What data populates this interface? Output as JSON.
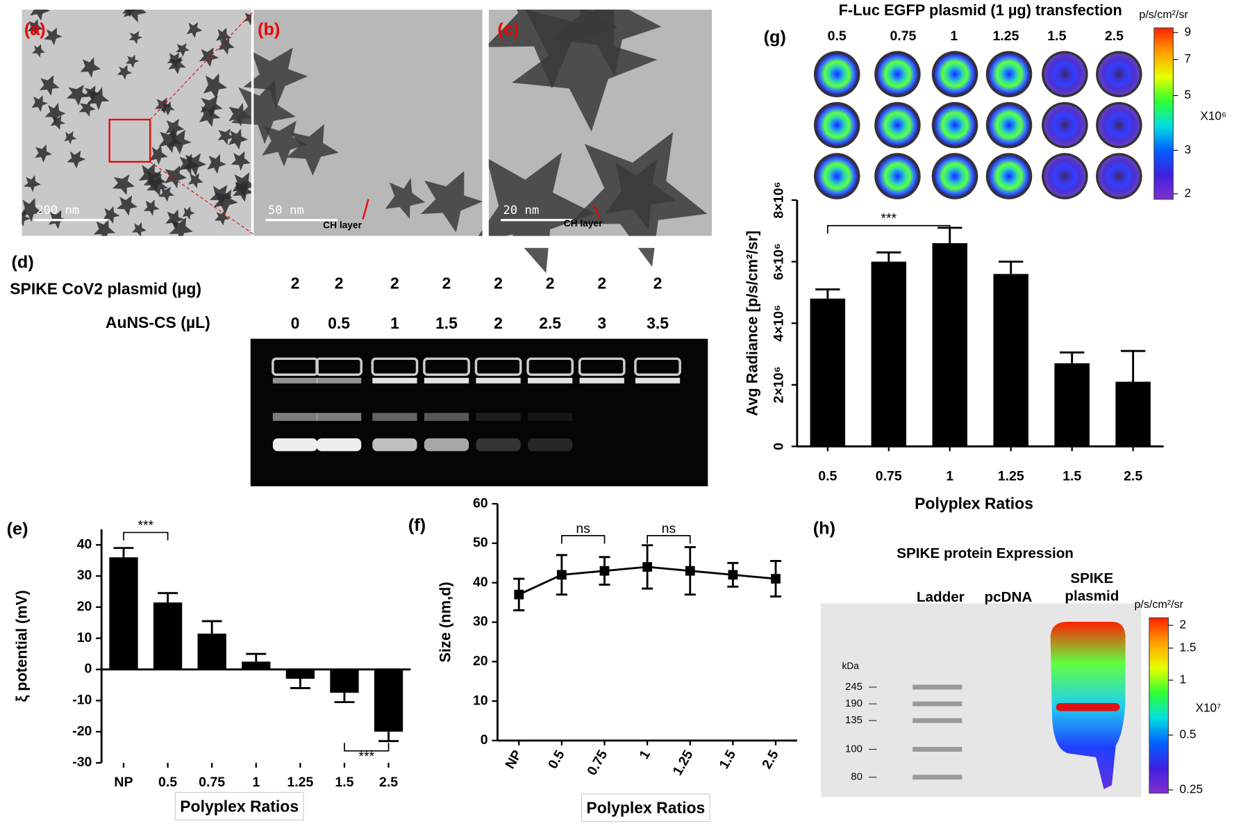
{
  "panel_labels": [
    "(a)",
    "(b)",
    "(c)",
    "(d)",
    "(e)",
    "(f)",
    "(g)",
    "(h)"
  ],
  "tem": {
    "scale_bars": [
      "200 nm",
      "50 nm",
      "20 nm"
    ],
    "annotation": "CH layer"
  },
  "gel": {
    "rows": [
      {
        "label": "SPIKE CoV2 plasmid (µg)",
        "values": [
          2,
          2,
          2,
          2,
          2,
          2,
          2,
          2
        ]
      },
      {
        "label": "AuNS-CS  (µL)",
        "values": [
          0,
          0.5,
          1,
          1.5,
          2,
          2.5,
          3,
          3.5
        ]
      }
    ]
  },
  "imaging": {
    "title": "F-Luc EGFP plasmid (1 µg) transfection",
    "columns": [
      "0.5",
      "0.75",
      "1",
      "1.25",
      "1.5",
      "2.5"
    ],
    "colorbar": {
      "unit": "p/s/cm²/sr",
      "multiplier": "X10⁶",
      "ticks": [
        2,
        3,
        5,
        7,
        9
      ],
      "lim": [
        1.9,
        9.4
      ],
      "log": true
    }
  },
  "blot": {
    "title": "SPIKE protein Expression",
    "lanes": [
      "Ladder",
      "pcDNA",
      "SPIKE plasmid"
    ],
    "marker_unit": "kDa",
    "markers": [
      245,
      190,
      135,
      100,
      80
    ],
    "colorbar": {
      "unit": "p/s/cm²/sr",
      "multiplier": "X10⁷",
      "ticks": [
        0.25,
        0.5,
        1,
        1.5,
        2
      ],
      "lim": [
        0.24,
        2.2
      ],
      "log": true
    }
  },
  "chart_data": [
    {
      "type": "bar",
      "y_label": "ξ potential (mV)",
      "x_label": "Polyplex Ratios",
      "categories": [
        "NP",
        "0.5",
        "0.75",
        "1",
        "1.25",
        "1.5",
        "2.5"
      ],
      "values": [
        36,
        21.5,
        11.5,
        2.5,
        -3,
        -7.5,
        -20
      ],
      "errors": [
        3,
        3,
        4,
        2.5,
        3,
        3,
        3
      ],
      "color": "#000000",
      "ylim": [
        -30,
        45
      ],
      "yticks": [
        -30,
        -20,
        -10,
        0,
        10,
        20,
        30,
        40
      ],
      "annotations": [
        "***",
        "***"
      ]
    },
    {
      "type": "line",
      "y_label": "Size (nm,d)",
      "x_label": "Polyplex Ratios",
      "categories": [
        "NP",
        "0.5",
        "0.75",
        "1",
        "1.25",
        "1.5",
        "2.5"
      ],
      "values": [
        37,
        42,
        43,
        44,
        43,
        42,
        41
      ],
      "errors": [
        4,
        5,
        3.5,
        5.5,
        6,
        3,
        4.5
      ],
      "color": "#000000",
      "ylim": [
        0,
        60
      ],
      "yticks": [
        0,
        10,
        20,
        30,
        40,
        50,
        60
      ],
      "annotations": [
        "ns",
        "ns"
      ]
    },
    {
      "type": "bar",
      "y_label": "Avg Radiance [p/s/cm²/sr]",
      "x_label": "Polyplex Ratios",
      "categories": [
        "0.5",
        "0.75",
        "1",
        "1.25",
        "1.5",
        "2.5"
      ],
      "values": [
        4800000,
        6000000,
        6600000,
        5600000,
        2700000,
        2100000
      ],
      "errors": [
        300000,
        300000,
        500000,
        400000,
        350000,
        1000000
      ],
      "color": "#000000",
      "ylim": [
        0,
        8000000
      ],
      "yticks": [
        0,
        {
          "value": 2000000,
          "label": "2×10⁶"
        },
        {
          "value": 4000000,
          "label": "4×10⁶"
        },
        {
          "value": 6000000,
          "label": "6×10⁶"
        },
        {
          "value": 8000000,
          "label": "8×10⁶"
        }
      ],
      "annotations": [
        "***"
      ]
    }
  ]
}
